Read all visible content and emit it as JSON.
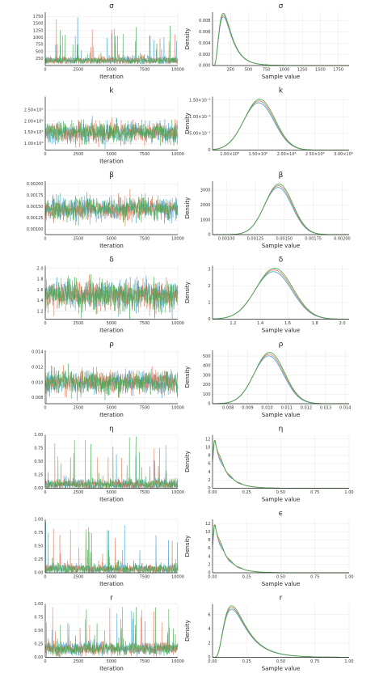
{
  "colors": {
    "chain1": "#3a9fd8",
    "chain2": "#e0734f",
    "chain3": "#3ba84a"
  },
  "chart_data": [
    {
      "type": "line",
      "param": "σ",
      "trace": {
        "title": "σ",
        "xlabel": "Iteration",
        "ylabel": "",
        "xlim": [
          0,
          10000
        ],
        "ylim": [
          0,
          1900
        ],
        "xticks": [
          0,
          2500,
          5000,
          7500,
          10000
        ],
        "xtick_labels": [
          "0",
          "2500",
          "5000",
          "7500",
          "10000"
        ],
        "yticks": [
          250,
          500,
          750,
          1000,
          1250,
          1500,
          1750
        ],
        "ytick_labels": [
          "250",
          "500",
          "750",
          "1000",
          "1250",
          "1500",
          "1750"
        ],
        "center": 180,
        "spread": 70,
        "floor": 60,
        "spikes": {
          "rate": 0.012,
          "max": 1750
        }
      },
      "density": {
        "title": "σ",
        "xlabel": "Sample value",
        "ylabel": "Density",
        "xlim": [
          0,
          1900
        ],
        "ylim": [
          0,
          0.0095
        ],
        "xticks": [
          250,
          500,
          750,
          1000,
          1250,
          1500,
          1750
        ],
        "xtick_labels": [
          "250",
          "500",
          "750",
          "1000",
          "1250",
          "1500",
          "1750"
        ],
        "yticks": [
          0,
          0.002,
          0.004,
          0.006,
          0.008
        ],
        "ytick_labels": [
          "0.000",
          "0.002",
          "0.004",
          "0.006",
          "0.008"
        ],
        "shape": "skew",
        "peak_x": 150,
        "peak_y": 0.009,
        "scale": 110
      }
    },
    {
      "type": "line",
      "param": "k",
      "trace": {
        "title": "k",
        "xlabel": "Iteration",
        "ylabel": "",
        "xlim": [
          0,
          10000
        ],
        "ylim": [
          700000,
          3100000
        ],
        "xticks": [
          0,
          2500,
          5000,
          7500,
          10000
        ],
        "xtick_labels": [
          "0",
          "2500",
          "5000",
          "7500",
          "10000"
        ],
        "yticks": [
          1000000,
          1500000,
          2000000,
          2500000
        ],
        "ytick_labels": [
          "1.00×10⁶",
          "1.50×10⁶",
          "2.00×10⁶",
          "2.50×10⁶"
        ],
        "center": 1500000,
        "spread": 230000
      },
      "density": {
        "title": "k",
        "xlabel": "",
        "ylabel": "Density",
        "xlim": [
          700000,
          3100000
        ],
        "ylim": [
          0,
          1.6e-06
        ],
        "xticks": [
          1000000,
          1500000,
          2000000,
          2500000,
          3000000
        ],
        "xtick_labels": [
          "1.00×10⁶",
          "1.50×10⁶",
          "2.00×10⁶",
          "2.50×10⁶",
          "3.00×10⁶"
        ],
        "yticks": [
          0,
          5e-07,
          1e-06,
          1.5e-06
        ],
        "ytick_labels": [
          "0",
          "5.00×10⁻⁷",
          "1.00×10⁻⁶",
          "1.50×10⁻⁶"
        ],
        "shape": "normal",
        "peak_x": 1520000,
        "peak_y": 1.47e-06,
        "scale": 270000
      }
    },
    {
      "type": "line",
      "param": "β",
      "trace": {
        "title": "β",
        "xlabel": "Iteration",
        "ylabel": "",
        "xlim": [
          0,
          10000
        ],
        "ylim": [
          0.00088,
          0.00206
        ],
        "xticks": [
          0,
          2500,
          5000,
          7500,
          10000
        ],
        "xtick_labels": [
          "0",
          "2500",
          "5000",
          "7500",
          "10000"
        ],
        "yticks": [
          0.001,
          0.00125,
          0.0015,
          0.00175,
          0.002
        ],
        "ytick_labels": [
          "0.00100",
          "0.00125",
          "0.00150",
          "0.00175",
          "0.00200"
        ],
        "center": 0.00145,
        "spread": 0.00012
      },
      "density": {
        "title": "β",
        "xlabel": "Sample value",
        "ylabel": "Density",
        "xlim": [
          0.00088,
          0.00206
        ],
        "ylim": [
          0,
          3600
        ],
        "xticks": [
          0.001,
          0.00125,
          0.0015,
          0.00175,
          0.002
        ],
        "xtick_labels": [
          "0.00100",
          "0.00125",
          "0.00150",
          "0.00175",
          "0.00200"
        ],
        "yticks": [
          0,
          1000,
          2000,
          3000
        ],
        "ytick_labels": [
          "0",
          "1000",
          "2000",
          "3000"
        ],
        "shape": "normal",
        "peak_x": 0.00145,
        "peak_y": 3300,
        "scale": 0.00012
      }
    },
    {
      "type": "line",
      "param": "δ",
      "trace": {
        "title": "δ",
        "xlabel": "Iteration",
        "ylabel": "",
        "xlim": [
          0,
          10000
        ],
        "ylim": [
          1.05,
          2.05
        ],
        "xticks": [
          0,
          2500,
          5000,
          7500,
          10000
        ],
        "xtick_labels": [
          "0",
          "2500",
          "5000",
          "7500",
          "10000"
        ],
        "yticks": [
          1.2,
          1.4,
          1.6,
          1.8,
          2.0
        ],
        "ytick_labels": [
          "1.2",
          "1.4",
          "1.6",
          "1.8",
          "2.0"
        ],
        "center": 1.5,
        "spread": 0.13
      },
      "density": {
        "title": "δ",
        "xlabel": "Sample value",
        "ylabel": "Density",
        "xlim": [
          1.05,
          2.05
        ],
        "ylim": [
          0,
          3.2
        ],
        "xticks": [
          1.2,
          1.4,
          1.6,
          1.8,
          2.0
        ],
        "xtick_labels": [
          "1.2",
          "1.4",
          "1.6",
          "1.8",
          "2.0"
        ],
        "yticks": [
          0,
          1,
          2,
          3
        ],
        "ytick_labels": [
          "0",
          "1",
          "2",
          "3"
        ],
        "shape": "normal",
        "peak_x": 1.5,
        "peak_y": 2.95,
        "scale": 0.135
      }
    },
    {
      "type": "line",
      "param": "ρ",
      "trace": {
        "title": "ρ",
        "xlabel": "Iteration",
        "ylabel": "",
        "xlim": [
          0,
          10000
        ],
        "ylim": [
          0.0072,
          0.0142
        ],
        "xticks": [
          0,
          2500,
          5000,
          7500,
          10000
        ],
        "xtick_labels": [
          "0",
          "2500",
          "5000",
          "7500",
          "10000"
        ],
        "yticks": [
          0.008,
          0.01,
          0.012,
          0.014
        ],
        "ytick_labels": [
          "0.008",
          "0.010",
          "0.012",
          "0.014"
        ],
        "center": 0.01,
        "spread": 0.00075
      },
      "density": {
        "title": "ρ",
        "xlabel": "Sample value",
        "ylabel": "Density",
        "xlim": [
          0.0072,
          0.0142
        ],
        "ylim": [
          0,
          560
        ],
        "xticks": [
          0.008,
          0.009,
          0.01,
          0.011,
          0.012,
          0.013,
          0.014
        ],
        "xtick_labels": [
          "0.008",
          "0.009",
          "0.010",
          "0.011",
          "0.012",
          "0.013",
          "0.014"
        ],
        "yticks": [
          0,
          100,
          200,
          300,
          400,
          500
        ],
        "ytick_labels": [
          "0",
          "100",
          "200",
          "300",
          "400",
          "500"
        ],
        "shape": "normal",
        "peak_x": 0.0101,
        "peak_y": 520,
        "scale": 0.00077
      }
    },
    {
      "type": "line",
      "param": "η",
      "trace": {
        "title": "η",
        "xlabel": "Iteration",
        "ylabel": "",
        "xlim": [
          0,
          10000
        ],
        "ylim": [
          0,
          1.0
        ],
        "xticks": [
          0,
          2500,
          5000,
          7500,
          10000
        ],
        "xtick_labels": [
          "0",
          "2500",
          "5000",
          "7500",
          "10000"
        ],
        "yticks": [
          0,
          0.25,
          0.5,
          0.75,
          1.0
        ],
        "ytick_labels": [
          "0.00",
          "0.25",
          "0.50",
          "0.75",
          "1.00"
        ],
        "center": 0.07,
        "spread": 0.05,
        "floor": 0,
        "spikes": {
          "rate": 0.01,
          "max": 0.97
        }
      },
      "density": {
        "title": "η",
        "xlabel": "Sample value",
        "ylabel": "Density",
        "xlim": [
          0,
          1.0
        ],
        "ylim": [
          0,
          13
        ],
        "xticks": [
          0,
          0.25,
          0.5,
          0.75,
          1.0
        ],
        "xtick_labels": [
          "0.00",
          "0.25",
          "0.50",
          "0.75",
          "1.00"
        ],
        "yticks": [
          0,
          2,
          4,
          6,
          8,
          10,
          12
        ],
        "ytick_labels": [
          "0",
          "2",
          "4",
          "6",
          "8",
          "10",
          "12"
        ],
        "shape": "decay",
        "peak_x": 0.015,
        "peak_y": 12,
        "scale": 0.08
      }
    },
    {
      "type": "line",
      "param": "ϵ",
      "trace": {
        "title": "",
        "xlabel": "Iteration",
        "ylabel": "",
        "xlim": [
          0,
          10000
        ],
        "ylim": [
          0,
          1.0
        ],
        "xticks": [
          0,
          2500,
          5000,
          7500,
          10000
        ],
        "xtick_labels": [
          "0",
          "2500",
          "5000",
          "7500",
          "10000"
        ],
        "yticks": [
          0,
          0.25,
          0.5,
          0.75,
          1.0
        ],
        "ytick_labels": [
          "0.00",
          "0.25",
          "0.50",
          "0.75",
          "1.00"
        ],
        "center": 0.07,
        "spread": 0.05,
        "floor": 0,
        "spikes": {
          "rate": 0.011,
          "max": 0.97
        }
      },
      "density": {
        "title": "ϵ",
        "xlabel": "Sample value",
        "ylabel": "Density",
        "xlim": [
          0,
          1.0
        ],
        "ylim": [
          0,
          13
        ],
        "xticks": [
          0,
          0.25,
          0.5,
          0.75,
          1.0
        ],
        "xtick_labels": [
          "0.00",
          "0.25",
          "0.50",
          "0.75",
          "1.00"
        ],
        "yticks": [
          0,
          2,
          4,
          6,
          8,
          10,
          12
        ],
        "ytick_labels": [
          "0",
          "2",
          "4",
          "6",
          "8",
          "10",
          "12"
        ],
        "shape": "decay",
        "peak_x": 0.015,
        "peak_y": 12,
        "scale": 0.08
      }
    },
    {
      "type": "line",
      "param": "r",
      "trace": {
        "title": "r",
        "xlabel": "Iteration",
        "ylabel": "",
        "xlim": [
          0,
          10000
        ],
        "ylim": [
          0,
          1.0
        ],
        "xticks": [
          0,
          2500,
          5000,
          7500,
          10000
        ],
        "xtick_labels": [
          "0",
          "2500",
          "5000",
          "7500",
          "10000"
        ],
        "yticks": [
          0,
          0.25,
          0.5,
          0.75,
          1.0
        ],
        "ytick_labels": [
          "0.00",
          "0.25",
          "0.50",
          "0.75",
          "1.00"
        ],
        "center": 0.16,
        "spread": 0.06,
        "floor": 0,
        "spikes": {
          "rate": 0.012,
          "max": 0.97
        }
      },
      "density": {
        "title": "r",
        "xlabel": "Sample value",
        "ylabel": "Density",
        "xlim": [
          0,
          1.0
        ],
        "ylim": [
          0,
          7.5
        ],
        "xticks": [
          0,
          0.25,
          0.5,
          0.75,
          1.0
        ],
        "xtick_labels": [
          "0.00",
          "0.25",
          "0.50",
          "0.75",
          "1.00"
        ],
        "yticks": [
          0,
          2,
          4,
          6
        ],
        "ytick_labels": [
          "0",
          "2",
          "4",
          "6"
        ],
        "shape": "skew",
        "peak_x": 0.14,
        "peak_y": 7,
        "scale": 0.08
      }
    }
  ]
}
